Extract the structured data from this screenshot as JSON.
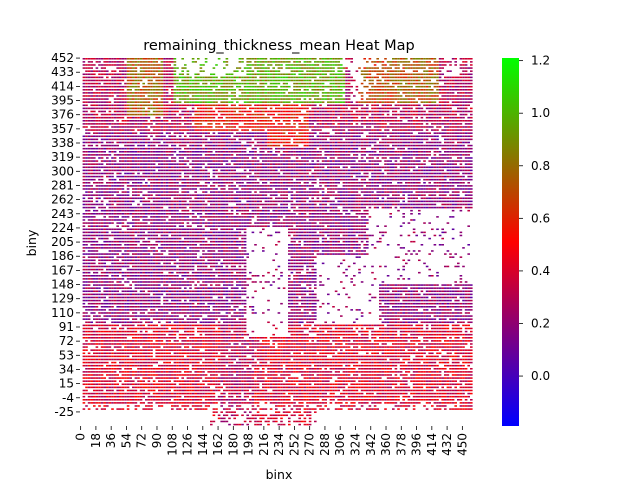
{
  "chart_data": {
    "type": "heatmap",
    "title": "remaining_thickness_mean Heat Map",
    "xlabel": "binx",
    "ylabel": "biny",
    "x_tick_labels": [
      "0",
      "18",
      "36",
      "54",
      "72",
      "90",
      "108",
      "126",
      "144",
      "162",
      "180",
      "198",
      "216",
      "234",
      "252",
      "270",
      "288",
      "306",
      "324",
      "342",
      "360",
      "378",
      "396",
      "414",
      "432",
      "450"
    ],
    "y_tick_labels": [
      "452",
      "433",
      "414",
      "395",
      "376",
      "357",
      "338",
      "319",
      "300",
      "281",
      "262",
      "243",
      "224",
      "205",
      "186",
      "167",
      "148",
      "129",
      "110",
      "91",
      "72",
      "53",
      "34",
      "15",
      "-4",
      "-25"
    ],
    "x_range": [
      0,
      459
    ],
    "y_range": [
      -25,
      452
    ],
    "colorbar": {
      "min": -0.19,
      "max": 1.21,
      "ticks": [
        "0.0",
        "0.2",
        "0.4",
        "0.6",
        "0.8",
        "1.0",
        "1.2"
      ],
      "colors": [
        "#0000ff",
        "#ff0000",
        "#00ff00"
      ]
    },
    "value_regions": [
      {
        "region": "bottom rows (biny -4 to 110)",
        "approx_value": 0.4
      },
      {
        "region": "middle rows (biny 110 to 357)",
        "approx_value": 0.2
      },
      {
        "region": "upper-left columns (binx 54-90, biny 376-452)",
        "approx_value": 0.75
      },
      {
        "region": "top-center (binx 108-306, biny 395-452)",
        "approx_value": 0.95
      },
      {
        "region": "top-right (binx 360-414, biny 395-452)",
        "approx_value": 0.75
      },
      {
        "region": "binx 216-260, biny 338-395",
        "approx_value": 0.55
      }
    ],
    "empty_regions": [
      "binx 190-240, biny 90-230",
      "binx 270-345, biny 110-200",
      "binx 330-450, biny 160-260",
      "binx 110-190, biny 430-452",
      "binx 150-270, biny -25 to -4 (sparse)"
    ]
  }
}
